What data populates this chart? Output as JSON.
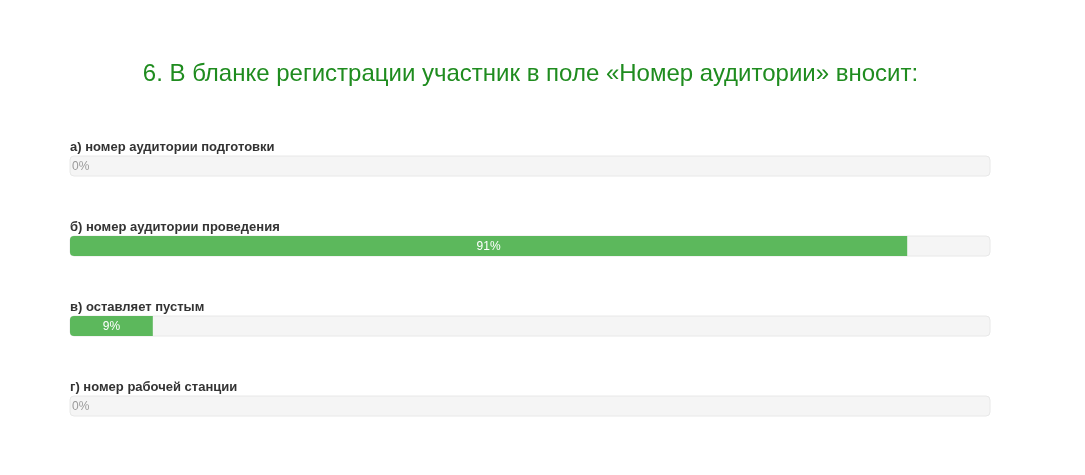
{
  "chart_data": {
    "type": "bar",
    "orientation": "horizontal",
    "title": "6. В бланке регистрации участник в поле «Номер аудитории» вносит:",
    "categories": [
      "а) номер аудитории подготовки",
      "б) номер аудитории проведения",
      "в) оставляет пустым",
      "г) номер рабочей станции"
    ],
    "values": [
      0,
      91,
      9,
      0
    ],
    "color": "#5cb85c",
    "value_labels": [
      "0%",
      "91%",
      "9%",
      "0%"
    ],
    "xlim": [
      0,
      100
    ],
    "tick_labels": "y"
  }
}
